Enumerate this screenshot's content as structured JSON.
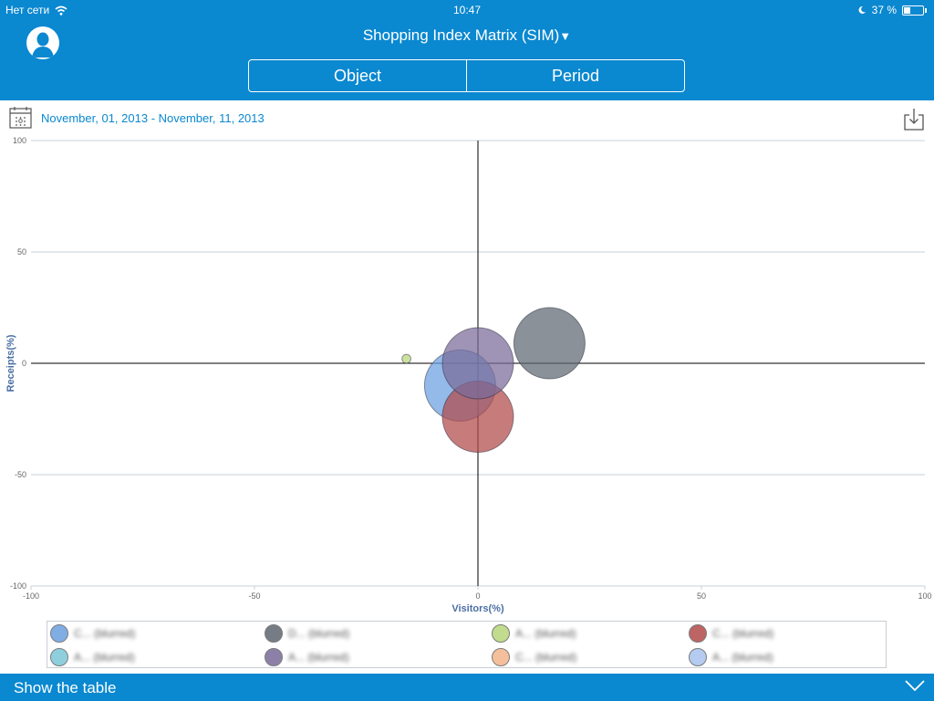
{
  "status_bar": {
    "carrier": "Нет сети",
    "time": "10:47",
    "battery": "37 %",
    "battery_level": 0.37
  },
  "header": {
    "title": "Shopping Index Matrix (SIM)",
    "title_arrow": "▼",
    "segments": [
      {
        "label": "Object"
      },
      {
        "label": "Period"
      }
    ]
  },
  "date_range": "November, 01, 2013 - November, 11, 2013",
  "chart_data": {
    "type": "bubble",
    "xlabel": "Visitors(%)",
    "ylabel": "Receipts(%)",
    "xlim": [
      -100,
      100
    ],
    "ylim": [
      -100,
      100
    ],
    "x_ticks": [
      -100,
      -50,
      0,
      50,
      100
    ],
    "y_ticks": [
      -100,
      -50,
      0,
      50,
      100
    ],
    "series": [
      {
        "name": "C... (blurred)",
        "color": "#6a9fe0",
        "x": -4,
        "y": -10,
        "size": 8
      },
      {
        "name": "D... (blurred)",
        "color": "#5d6670",
        "x": 16,
        "y": 9,
        "size": 8
      },
      {
        "name": "A... (blurred)",
        "color": "#b7d77a",
        "x": -16,
        "y": 2,
        "size": 1
      },
      {
        "name": "C... (blurred)",
        "color": "#b24a4a",
        "x": 0,
        "y": -24,
        "size": 8
      },
      {
        "name": "A... (blurred)",
        "color": "#7cc7d8",
        "x": 0,
        "y": 0,
        "size": 0
      },
      {
        "name": "A... (blurred)",
        "color": "#7a6b9a",
        "x": 0,
        "y": 0,
        "size": 8
      },
      {
        "name": "C... (blurred)",
        "color": "#f4b48a",
        "x": 0,
        "y": 0,
        "size": 0
      },
      {
        "name": "A... (blurred)",
        "color": "#a9c2ee",
        "x": 0,
        "y": 0,
        "size": 0
      }
    ]
  },
  "legend": [
    {
      "label": "C... (blurred)",
      "color": "#6a9fe0"
    },
    {
      "label": "D... (blurred)",
      "color": "#5d6670"
    },
    {
      "label": "A... (blurred)",
      "color": "#b7d77a"
    },
    {
      "label": "C... (blurred)",
      "color": "#b24a4a"
    },
    {
      "label": "A... (blurred)",
      "color": "#7cc7d8"
    },
    {
      "label": "A... (blurred)",
      "color": "#7a6b9a"
    },
    {
      "label": "C... (blurred)",
      "color": "#f4b48a"
    },
    {
      "label": "A... (blurred)",
      "color": "#a9c2ee"
    }
  ],
  "footer": {
    "label": "Show the table"
  }
}
